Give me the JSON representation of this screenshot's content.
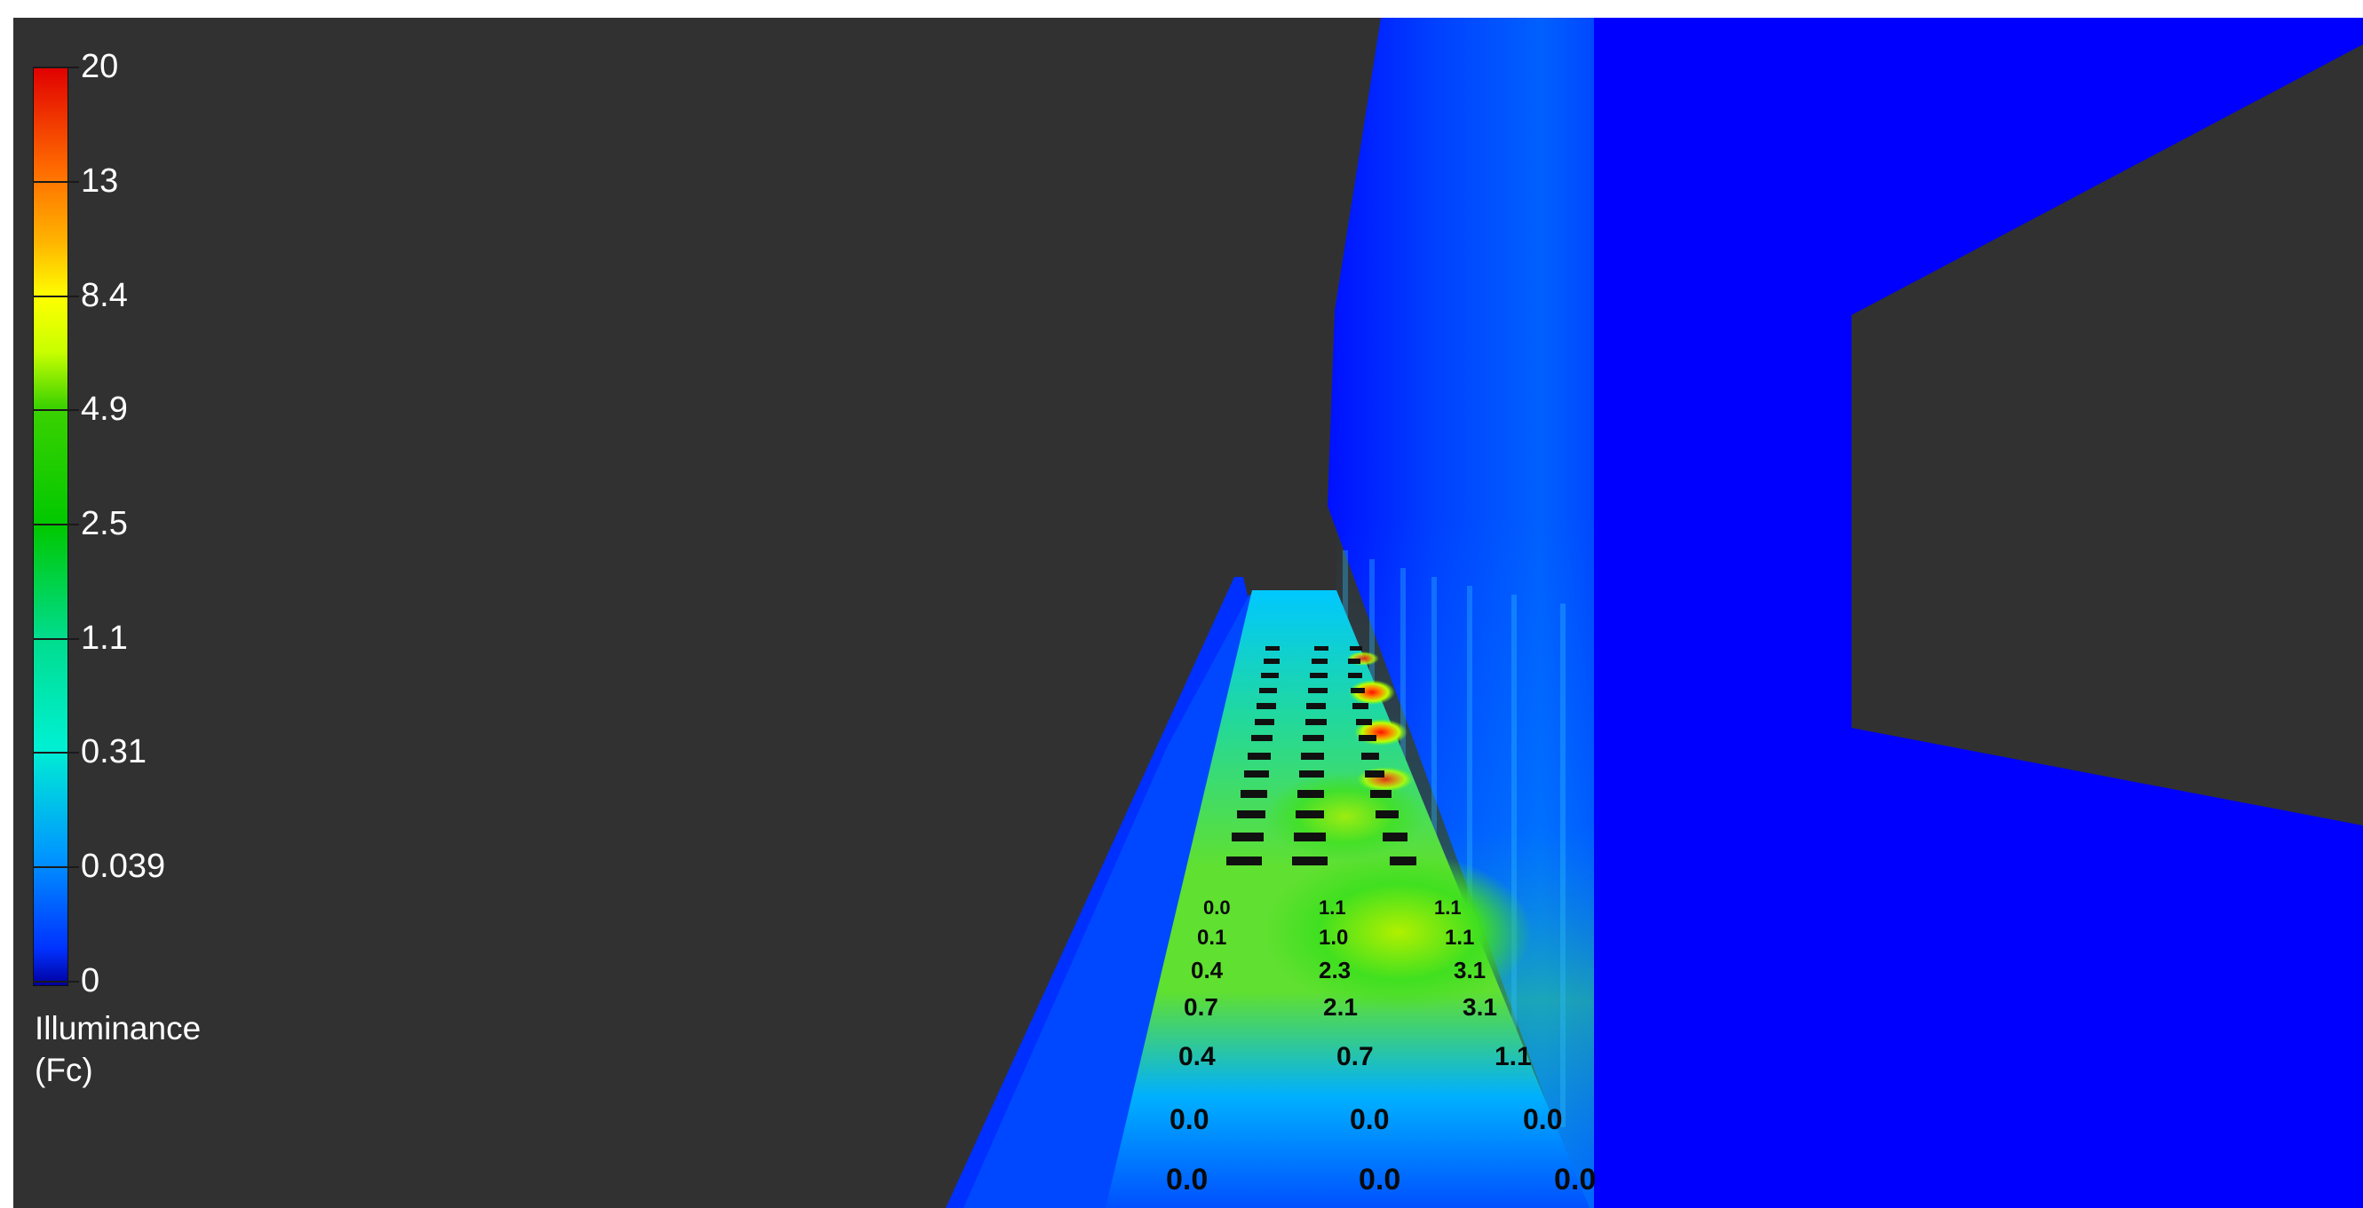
{
  "legend": {
    "ticks": [
      "20",
      "13",
      "8.4",
      "4.9",
      "2.5",
      "1.1",
      "0.31",
      "0.039",
      "0"
    ],
    "title_line1": "Illuminance",
    "title_line2": "(Fc)"
  },
  "colors": {
    "background": "#313131",
    "wall_blue": "#0000ff",
    "hot": "#ff2000",
    "mid_green": "#3cdc00",
    "cyan": "#00c8ff"
  },
  "grid_values": {
    "row1": [
      "0.0",
      "0.0",
      "0.0"
    ],
    "row2": [
      "0.0",
      "0.0",
      "0.0"
    ],
    "row3": [
      "0.4",
      "0.7",
      "1.1"
    ],
    "row4": [
      "0.7",
      "2.1",
      "3.1"
    ],
    "row5": [
      "0.4",
      "2.3",
      "3.1"
    ],
    "row6": [
      "0.1",
      "1.0",
      "1.1"
    ],
    "row7": [
      "0.0",
      "1.1",
      "1.1"
    ]
  }
}
